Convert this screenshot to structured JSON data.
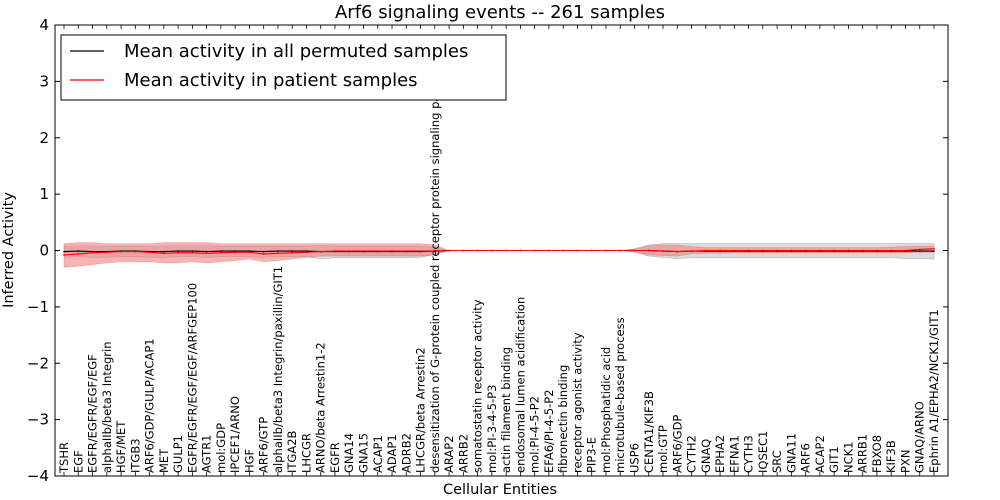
{
  "chart_data": {
    "type": "line",
    "title": "Arf6 signaling events -- 261 samples",
    "xlabel": "Cellular Entities",
    "ylabel": "Inferred Activity",
    "ylim": [
      -4,
      4
    ],
    "yticks": [
      -4,
      -3,
      -2,
      -1,
      0,
      1,
      2,
      3,
      4
    ],
    "ytick_labels": [
      "−4",
      "−3",
      "−2",
      "−1",
      "0",
      "1",
      "2",
      "3",
      "4"
    ],
    "legend": {
      "position": "top-left"
    },
    "categories": [
      "TSHR",
      "EGF",
      "EGFR/EGFR/EGF/EGF",
      "alphaIIb/beta3 Integrin",
      "HGF/MET",
      "ITGB3",
      "ARF6/GDP/GULP/ACAP1",
      "MET",
      "GULP1",
      "EGFR/EGFR/EGF/EGF/ARFGEP100",
      "AGTR1",
      "mol:GDP",
      "IPCEF1/ARNO",
      "HGF",
      "ARF6/GTP",
      "alphaIIb/beta3 Integrin/paxillin/GIT1",
      "ITGA2B",
      "LHCGR",
      "ARNO/beta Arrestin1-2",
      "EGFR",
      "GNA14",
      "GNA15",
      "ACAP1",
      "ADAP1",
      "ADRB2",
      "LHCGR/beta Arrestin2",
      "desensitization of G-protein coupled receptor protein signaling pathway",
      "ARAP2",
      "ARRB2",
      "somatostatin receptor activity",
      "mol:PI-3-4-5-P3",
      "actin filament binding",
      "endosomal lumen acidification",
      "mol:PI-4-5-P2",
      "EFA6/PI-4-5-P2",
      "fibronectin binding",
      "receptor agonist activity",
      "PIP3-E",
      "mol:Phosphatidic acid",
      "microtubule-based process",
      "USP6",
      "CENTA1/KIF3B",
      "mol:GTP",
      "ARF6/GDP",
      "CYTH2",
      "GNAQ",
      "EPHA2",
      "EFNA1",
      "CYTH3",
      "IQSEC1",
      "SRC",
      "GNA11",
      "ARF6",
      "ACAP2",
      "GIT1",
      "NCK1",
      "ARRB1",
      "FBXO8",
      "KIF3B",
      "PXN",
      "GNAQ/ARNO",
      "Ephrin A1/EPHA2/NCK1/GIT1"
    ],
    "series": [
      {
        "name": "Mean activity in all permuted samples",
        "color": "#000000",
        "band_color": "#bfbfbf",
        "values": [
          -0.02,
          -0.01,
          -0.02,
          -0.02,
          -0.01,
          -0.01,
          -0.02,
          -0.02,
          -0.01,
          -0.01,
          -0.02,
          -0.01,
          -0.01,
          -0.01,
          -0.02,
          -0.01,
          -0.01,
          -0.01,
          -0.02,
          -0.02,
          -0.02,
          -0.02,
          -0.02,
          -0.02,
          -0.02,
          -0.02,
          -0.01,
          0.0,
          0.0,
          0.0,
          0.0,
          0.0,
          0.0,
          0.0,
          0.0,
          0.0,
          0.0,
          0.0,
          0.0,
          0.0,
          0.0,
          0.0,
          -0.01,
          -0.02,
          -0.01,
          -0.01,
          -0.01,
          -0.01,
          -0.01,
          -0.01,
          -0.01,
          -0.01,
          -0.01,
          -0.01,
          -0.01,
          -0.01,
          -0.01,
          -0.01,
          -0.01,
          -0.01,
          -0.01,
          -0.01
        ],
        "band_low": [
          -0.12,
          -0.11,
          -0.12,
          -0.12,
          -0.11,
          -0.11,
          -0.12,
          -0.12,
          -0.11,
          -0.11,
          -0.12,
          -0.11,
          -0.11,
          -0.11,
          -0.12,
          -0.11,
          -0.11,
          -0.11,
          -0.15,
          -0.13,
          -0.13,
          -0.13,
          -0.13,
          -0.13,
          -0.13,
          -0.12,
          -0.07,
          0.0,
          0.0,
          0.0,
          0.0,
          0.0,
          0.0,
          0.0,
          0.0,
          0.0,
          0.0,
          0.0,
          0.0,
          0.0,
          -0.03,
          -0.1,
          -0.12,
          -0.14,
          -0.13,
          -0.13,
          -0.13,
          -0.13,
          -0.13,
          -0.13,
          -0.13,
          -0.13,
          -0.13,
          -0.13,
          -0.13,
          -0.13,
          -0.13,
          -0.13,
          -0.13,
          -0.14,
          -0.14,
          -0.15
        ],
        "band_high": [
          0.08,
          0.08,
          0.08,
          0.08,
          0.08,
          0.08,
          0.08,
          0.08,
          0.08,
          0.08,
          0.08,
          0.08,
          0.08,
          0.08,
          0.08,
          0.08,
          0.08,
          0.08,
          0.09,
          0.08,
          0.08,
          0.08,
          0.08,
          0.08,
          0.08,
          0.08,
          0.05,
          0.0,
          0.0,
          0.0,
          0.0,
          0.0,
          0.0,
          0.0,
          0.0,
          0.0,
          0.0,
          0.0,
          0.0,
          0.0,
          0.03,
          0.1,
          0.12,
          0.12,
          0.12,
          0.12,
          0.12,
          0.12,
          0.12,
          0.12,
          0.12,
          0.12,
          0.12,
          0.12,
          0.12,
          0.12,
          0.12,
          0.12,
          0.12,
          0.12,
          0.12,
          0.12
        ]
      },
      {
        "name": "Mean activity in patient samples",
        "color": "#ff0000",
        "band_color": "#f08080",
        "values": [
          -0.08,
          -0.06,
          -0.04,
          -0.03,
          -0.02,
          -0.02,
          -0.03,
          -0.05,
          -0.04,
          -0.04,
          -0.05,
          -0.04,
          -0.03,
          -0.03,
          -0.06,
          -0.05,
          -0.04,
          -0.03,
          -0.02,
          -0.01,
          -0.01,
          -0.01,
          -0.01,
          -0.01,
          -0.01,
          -0.01,
          -0.01,
          0.0,
          0.0,
          0.0,
          0.0,
          0.0,
          0.0,
          0.0,
          0.0,
          0.0,
          0.0,
          0.0,
          0.0,
          0.0,
          0.0,
          0.0,
          -0.01,
          -0.02,
          -0.01,
          0.0,
          0.0,
          0.0,
          0.0,
          0.0,
          0.0,
          0.0,
          0.0,
          0.0,
          0.0,
          0.0,
          0.0,
          0.0,
          0.0,
          0.0,
          0.02,
          0.03
        ],
        "band_low": [
          -0.3,
          -0.28,
          -0.25,
          -0.22,
          -0.2,
          -0.2,
          -0.2,
          -0.22,
          -0.22,
          -0.2,
          -0.22,
          -0.2,
          -0.18,
          -0.15,
          -0.2,
          -0.18,
          -0.15,
          -0.12,
          -0.1,
          -0.1,
          -0.1,
          -0.1,
          -0.1,
          -0.1,
          -0.1,
          -0.1,
          -0.08,
          0.0,
          0.0,
          0.0,
          0.0,
          0.0,
          0.0,
          0.0,
          0.0,
          0.0,
          0.0,
          0.0,
          0.0,
          0.0,
          -0.02,
          -0.08,
          -0.09,
          -0.1,
          -0.06,
          -0.05,
          -0.05,
          -0.04,
          -0.04,
          -0.04,
          -0.04,
          -0.04,
          -0.04,
          -0.04,
          -0.04,
          -0.04,
          -0.04,
          -0.04,
          -0.04,
          -0.04,
          -0.03,
          -0.03
        ],
        "band_high": [
          0.12,
          0.14,
          0.14,
          0.12,
          0.12,
          0.12,
          0.12,
          0.14,
          0.14,
          0.14,
          0.14,
          0.12,
          0.12,
          0.12,
          0.12,
          0.12,
          0.12,
          0.12,
          0.12,
          0.12,
          0.12,
          0.12,
          0.12,
          0.12,
          0.12,
          0.12,
          0.1,
          0.0,
          0.0,
          0.0,
          0.0,
          0.0,
          0.0,
          0.0,
          0.0,
          0.0,
          0.0,
          0.0,
          0.0,
          0.0,
          0.02,
          0.08,
          0.1,
          0.1,
          0.07,
          0.05,
          0.05,
          0.05,
          0.05,
          0.05,
          0.05,
          0.05,
          0.05,
          0.05,
          0.05,
          0.05,
          0.05,
          0.05,
          0.06,
          0.07,
          0.08,
          0.08
        ]
      }
    ]
  }
}
